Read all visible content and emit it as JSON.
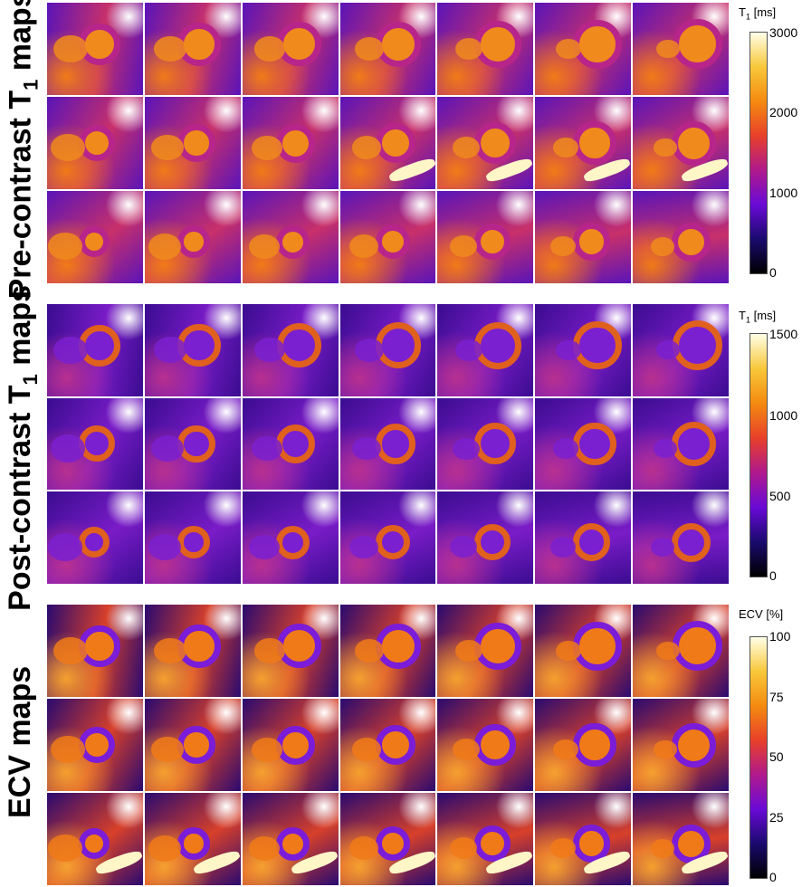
{
  "panels": [
    {
      "label_main": "Pre-contrast T",
      "label_sub": "1",
      "label_tail": " maps",
      "cbar_title_main": "T",
      "cbar_title_sub": "1",
      "cbar_title_tail": " [ms]",
      "ticks": [
        "3000",
        "2000",
        "1000",
        "0"
      ]
    },
    {
      "label_main": "Post-contrast T",
      "label_sub": "1",
      "label_tail": " maps",
      "cbar_title_main": "T",
      "cbar_title_sub": "1",
      "cbar_title_tail": " [ms]",
      "ticks": [
        "1500",
        "1000",
        "500",
        "0"
      ]
    },
    {
      "label_main": "ECV maps",
      "label_sub": "",
      "label_tail": "",
      "cbar_title_main": "ECV [%]",
      "cbar_title_sub": "",
      "cbar_title_tail": "",
      "ticks": [
        "100",
        "75",
        "50",
        "25",
        "0"
      ]
    }
  ],
  "colormap": [
    "#000000",
    "#1a0a6e",
    "#6a0ad6",
    "#b01a8c",
    "#e8402a",
    "#f48a10",
    "#f8c83a",
    "#ffffe8"
  ]
}
